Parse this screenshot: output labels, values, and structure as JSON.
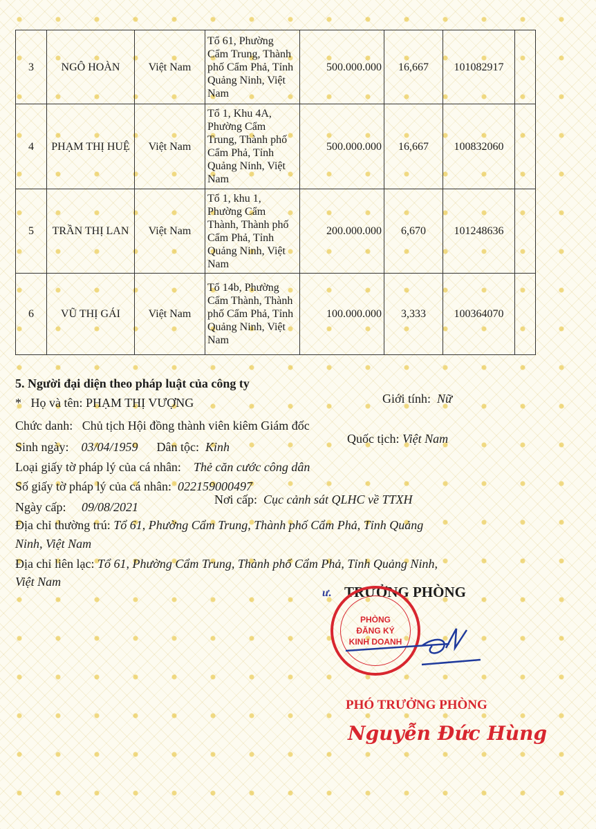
{
  "table": {
    "rows": [
      {
        "no": "3",
        "name": "NGÔ HOÀN",
        "nationality": "Việt Nam",
        "address": "Tổ 61, Phường Cẩm Trung, Thành phố Cẩm Phả, Tỉnh Quảng Ninh, Việt Nam",
        "capital": "500.000.000",
        "percent": "16,667",
        "id": "101082917",
        "extra": ""
      },
      {
        "no": "4",
        "name": "PHẠM THỊ HUỆ",
        "nationality": "Việt Nam",
        "address": "Tổ 1, Khu 4A, Phường Cẩm Trung, Thành phố Cẩm Phả, Tỉnh Quảng Ninh, Việt Nam",
        "capital": "500.000.000",
        "percent": "16,667",
        "id": "100832060",
        "extra": ""
      },
      {
        "no": "5",
        "name": "TRẦN THỊ LAN",
        "nationality": "Việt Nam",
        "address": "Tổ 1, khu 1, Phường Cẩm Thành, Thành phố Cẩm Phả, Tỉnh Quảng Ninh, Việt Nam",
        "capital": "200.000.000",
        "percent": "6,670",
        "id": "101248636",
        "extra": ""
      },
      {
        "no": "6",
        "name": "VŨ THỊ GÁI",
        "nationality": "Việt Nam",
        "address": "Tổ 14b, Phường Cẩm Thành, Thành phố Cẩm Phả, Tỉnh Quảng Ninh, Việt Nam",
        "capital": "100.000.000",
        "percent": "3,333",
        "id": "100364070",
        "extra": ""
      }
    ]
  },
  "section5": {
    "heading": "5. Người đại diện theo pháp luật của công ty",
    "bullet": "*",
    "name_label": "Họ và tên:",
    "name": "PHẠM THỊ VƯỢNG",
    "gender_label": "Giới tính:",
    "gender": "Nữ",
    "title_label": "Chức danh:",
    "title": "Chủ tịch Hội đồng thành viên kiêm Giám đốc",
    "dob_label": "Sinh ngày:",
    "dob": "03/04/1959",
    "ethnic_label": "Dân tộc:",
    "ethnic": "Kinh",
    "nationality_label": "Quốc tịch:",
    "nationality": "Việt Nam",
    "doc_type_label": "Loại giấy tờ pháp lý của cá nhân:",
    "doc_type": "Thẻ căn cước công dân",
    "doc_no_label": "Số giấy tờ pháp lý của cá nhân:",
    "doc_no": "022159000497",
    "issue_date_label": "Ngày cấp:",
    "issue_date": "09/08/2021",
    "issue_place_label": "Nơi cấp:",
    "issue_place": "Cục cảnh sát QLHC về TTXH",
    "perm_addr_label": "Địa chỉ thường trú:",
    "perm_addr_1": "Tổ 61, Phường Cẩm Trung, Thành phố Cẩm Phả, Tỉnh Quảng",
    "perm_addr_2": "Ninh, Việt Nam",
    "contact_addr_label": "Địa chỉ liên lạc:",
    "contact_addr_1": "Tổ 61, Phường Cẩm Trung, Thành phố Cẩm Phả, Tỉnh Quảng Ninh,",
    "contact_addr_2": "Việt Nam"
  },
  "signature": {
    "prefix": "ư.",
    "title": "TRƯỞNG PHÒNG",
    "stamp_text": [
      "PHÒNG",
      "ĐĂNG KÝ",
      "KINH DOANH"
    ],
    "deputy_title": "PHÓ TRƯỞNG PHÒNG",
    "signer": "Nguyễn Đức Hùng"
  }
}
